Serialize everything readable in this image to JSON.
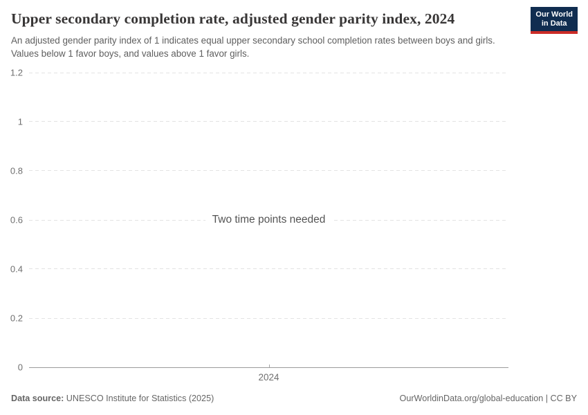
{
  "header": {
    "title": "Upper secondary completion rate, adjusted gender parity index, 2024",
    "subtitle": "An adjusted gender parity index of 1 indicates equal upper secondary school completion rates between boys and girls. Values below 1 favor boys, and values above 1 favor girls.",
    "logo": {
      "line1": "Our World",
      "line2": "in Data",
      "bg": "#102d50",
      "accent": "#cb2c27"
    }
  },
  "chart_data": {
    "type": "line",
    "title": "Upper secondary completion rate, adjusted gender parity index, 2024",
    "x": [
      2024
    ],
    "series": [],
    "message": "Two time points needed",
    "xticks": [
      "2024"
    ],
    "yticks": [
      0,
      0.2,
      0.4,
      0.6,
      0.8,
      1,
      1.2
    ],
    "ylim": [
      0,
      1.2
    ],
    "grid": "horizontal dashed",
    "legend": "none",
    "colors": {
      "gridline": "#e3e3e3",
      "axis_line": "#9a9a9a",
      "tick_label": "#6f6f6f",
      "message_text": "#545454"
    }
  },
  "footer": {
    "source_label": "Data source:",
    "source_value": "UNESCO Institute for Statistics (2025)",
    "link": "OurWorldinData.org/global-education | CC BY"
  }
}
